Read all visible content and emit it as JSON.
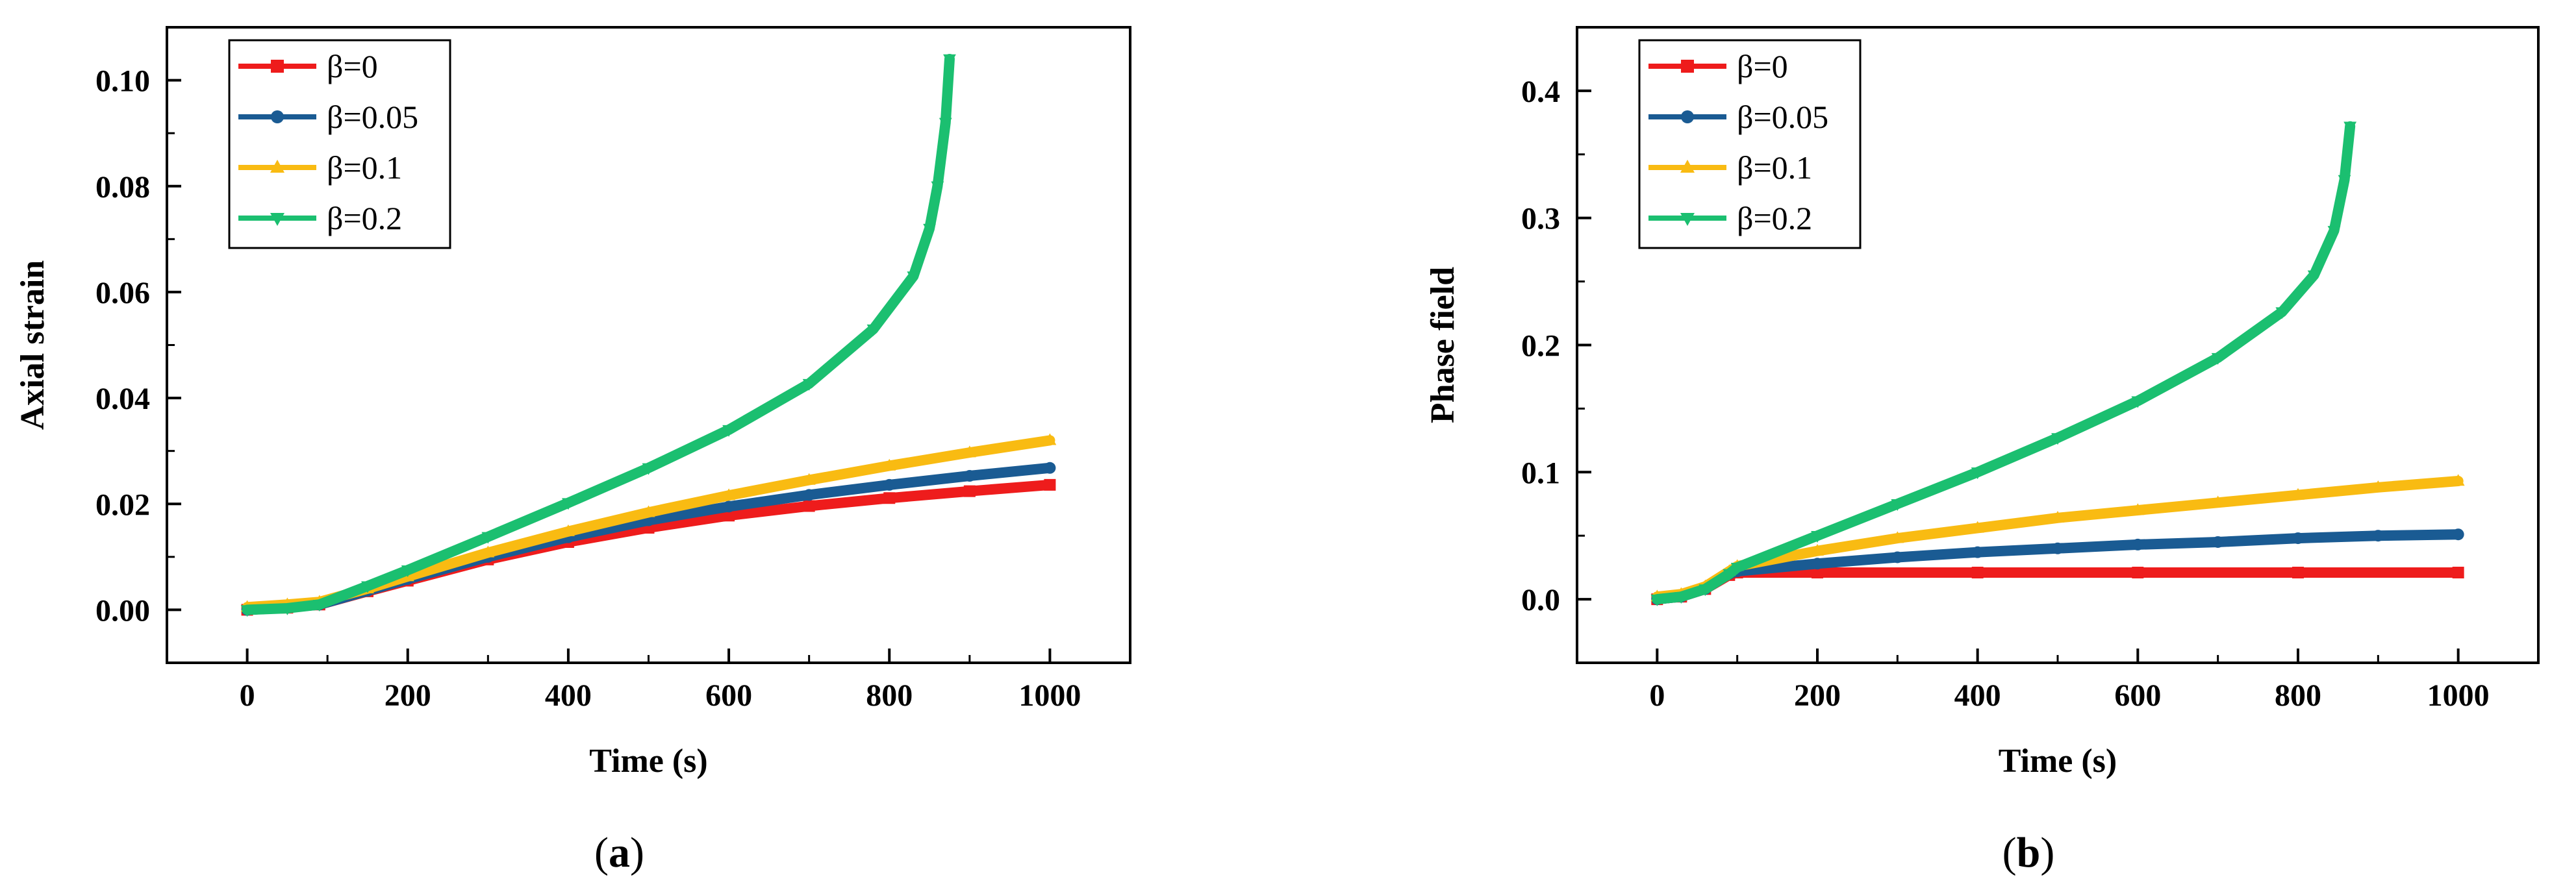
{
  "chart_data": [
    {
      "type": "line",
      "panel_label": "(a)",
      "xlabel": "Time (s)",
      "ylabel": "Axial strain",
      "xlim": [
        -100,
        1100
      ],
      "ylim": [
        -0.01,
        0.11
      ],
      "xticks": [
        0,
        200,
        400,
        600,
        800,
        1000
      ],
      "yticks": [
        0.0,
        0.02,
        0.04,
        0.06,
        0.08,
        0.1
      ],
      "ytick_labels": [
        "0.00",
        "0.02",
        "0.04",
        "0.06",
        "0.08",
        "0.10"
      ],
      "legend_position": "top-left",
      "series": [
        {
          "name": "β=0",
          "color": "#ee1c1c",
          "marker": "square",
          "x": [
            0,
            50,
            90,
            150,
            200,
            300,
            400,
            500,
            600,
            700,
            800,
            900,
            1000
          ],
          "values": [
            0,
            0.0004,
            0.001,
            0.0035,
            0.0055,
            0.0095,
            0.0128,
            0.0155,
            0.0178,
            0.0196,
            0.0211,
            0.0224,
            0.0236
          ]
        },
        {
          "name": "β=0.05",
          "color": "#1a5b93",
          "marker": "circle",
          "x": [
            0,
            50,
            90,
            150,
            200,
            300,
            400,
            500,
            600,
            700,
            800,
            900,
            1000
          ],
          "values": [
            0,
            0.0004,
            0.001,
            0.0036,
            0.0058,
            0.01,
            0.0137,
            0.0169,
            0.0195,
            0.0217,
            0.0236,
            0.0253,
            0.0268
          ]
        },
        {
          "name": "β=0.1",
          "color": "#f9bb12",
          "marker": "triangle-up",
          "x": [
            0,
            50,
            90,
            150,
            200,
            300,
            400,
            500,
            600,
            700,
            800,
            900,
            1000
          ],
          "values": [
            0.0005,
            0.001,
            0.0015,
            0.004,
            0.0063,
            0.0108,
            0.0148,
            0.0184,
            0.0216,
            0.0245,
            0.0272,
            0.0297,
            0.032
          ]
        },
        {
          "name": "β=0.2",
          "color": "#1bbf70",
          "marker": "triangle-down",
          "x": [
            0,
            50,
            90,
            150,
            200,
            300,
            400,
            500,
            600,
            700,
            780,
            830,
            850,
            860,
            870,
            875
          ],
          "values": [
            0,
            0.0003,
            0.001,
            0.0045,
            0.0075,
            0.0138,
            0.0202,
            0.0268,
            0.034,
            0.0427,
            0.053,
            0.063,
            0.072,
            0.08,
            0.092,
            0.104
          ]
        }
      ]
    },
    {
      "type": "line",
      "panel_label": "(b)",
      "xlabel": "Time (s)",
      "ylabel": "Phase field",
      "xlim": [
        -100,
        1100
      ],
      "ylim": [
        -0.05,
        0.45
      ],
      "xticks": [
        0,
        200,
        400,
        600,
        800,
        1000
      ],
      "yticks": [
        0.0,
        0.1,
        0.2,
        0.3,
        0.4
      ],
      "ytick_labels": [
        "0.0",
        "0.1",
        "0.2",
        "0.3",
        "0.4"
      ],
      "legend_position": "top-left",
      "series": [
        {
          "name": "β=0",
          "color": "#ee1c1c",
          "marker": "square",
          "x": [
            0,
            30,
            60,
            90,
            100,
            200,
            400,
            600,
            800,
            1000
          ],
          "values": [
            0,
            0.002,
            0.008,
            0.019,
            0.021,
            0.021,
            0.021,
            0.021,
            0.021,
            0.021
          ]
        },
        {
          "name": "β=0.05",
          "color": "#1a5b93",
          "marker": "circle",
          "x": [
            0,
            30,
            60,
            90,
            100,
            200,
            300,
            400,
            500,
            600,
            700,
            800,
            900,
            1000
          ],
          "values": [
            0,
            0.002,
            0.008,
            0.02,
            0.022,
            0.028,
            0.033,
            0.037,
            0.04,
            0.043,
            0.045,
            0.048,
            0.05,
            0.051
          ]
        },
        {
          "name": "β=0.1",
          "color": "#f9bb12",
          "marker": "triangle-up",
          "x": [
            0,
            30,
            60,
            90,
            100,
            200,
            300,
            400,
            500,
            600,
            700,
            800,
            900,
            1000
          ],
          "values": [
            0.002,
            0.004,
            0.01,
            0.022,
            0.026,
            0.038,
            0.048,
            0.056,
            0.064,
            0.07,
            0.076,
            0.082,
            0.088,
            0.093
          ]
        },
        {
          "name": "β=0.2",
          "color": "#1bbf70",
          "marker": "triangle-down",
          "x": [
            0,
            30,
            60,
            90,
            100,
            200,
            300,
            400,
            500,
            600,
            700,
            780,
            820,
            845,
            858,
            865
          ],
          "values": [
            0,
            0.002,
            0.008,
            0.02,
            0.025,
            0.05,
            0.075,
            0.1,
            0.127,
            0.156,
            0.19,
            0.226,
            0.255,
            0.29,
            0.33,
            0.372
          ]
        }
      ]
    }
  ]
}
